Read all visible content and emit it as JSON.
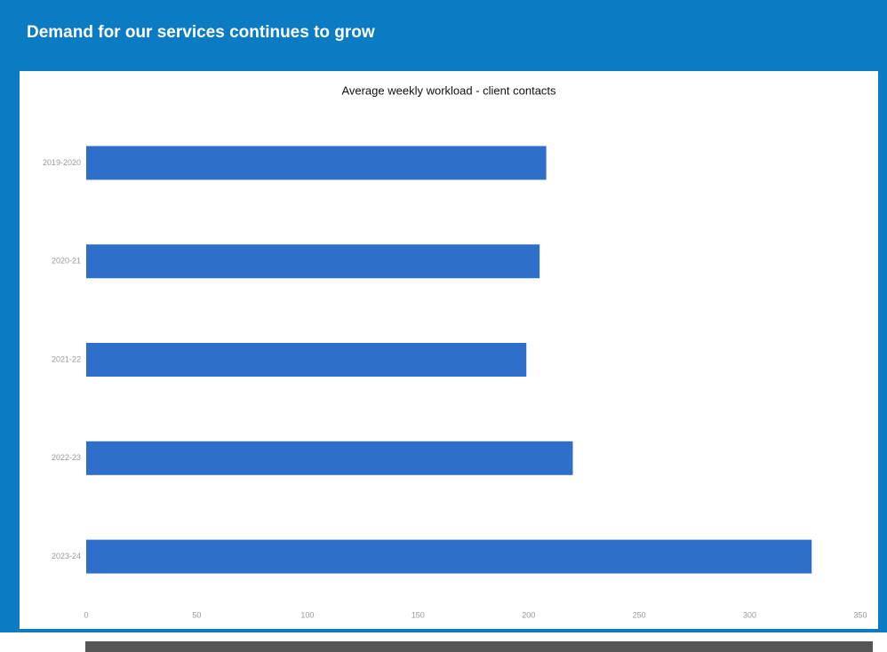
{
  "header": {
    "title": "Demand for our services continues to grow"
  },
  "chart_data": {
    "type": "bar",
    "orientation": "horizontal",
    "title": "Average weekly workload - client contacts",
    "categories": [
      "2019-2020",
      "2020-21",
      "2021-22",
      "2022-23",
      "2023-24"
    ],
    "values": [
      208,
      205,
      199,
      220,
      328
    ],
    "color": "#2f6fcc",
    "xlim": [
      0,
      350
    ],
    "xticks": [
      0,
      50,
      100,
      150,
      200,
      250,
      300,
      350
    ],
    "grid": false
  }
}
